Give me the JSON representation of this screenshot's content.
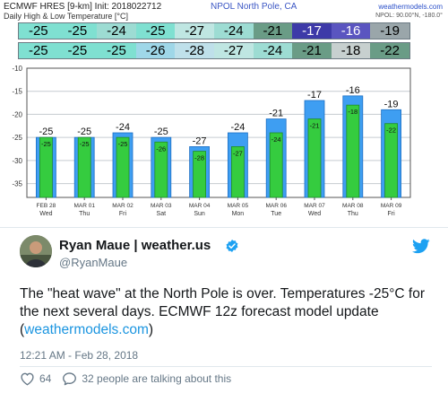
{
  "header": {
    "model_line": "ECMWF HRES [9-km] Init: 2018022712",
    "subtitle": "Daily High & Low Temperature [°C]",
    "location": "NPOL North Pole,   CA",
    "brand": "weathermodels.com",
    "coords": "NPOL: 90.00°N, -180.0°"
  },
  "strips": {
    "high": {
      "values": [
        "-25",
        "-25",
        "-24",
        "-25",
        "-27",
        "-24",
        "-21",
        "-17",
        "-16",
        "-19"
      ],
      "colors": [
        "#7fe0d1",
        "#7fe0d1",
        "#9ddcd3",
        "#7fe0d1",
        "#bfe6e2",
        "#9ddcd3",
        "#6a9c86",
        "#3d3aa8",
        "#5a55c0",
        "#9aa6aa"
      ]
    },
    "low": {
      "values": [
        "-25",
        "-25",
        "-25",
        "-26",
        "-28",
        "-27",
        "-24",
        "-21",
        "-18",
        "-22"
      ],
      "colors": [
        "#7fe0d1",
        "#7fe0d1",
        "#7fe0d1",
        "#9fd7e8",
        "#bfe0ea",
        "#bfe6e2",
        "#9ddcd3",
        "#6a9c86",
        "#c7d0cf",
        "#6a9c86"
      ]
    }
  },
  "chart_data": {
    "type": "bar",
    "categories": [
      "FEB 28",
      "MAR 01",
      "MAR 02",
      "MAR 03",
      "MAR 04",
      "MAR 05",
      "MAR 06",
      "MAR 07",
      "MAR 08",
      "MAR 09"
    ],
    "days": [
      "Wed",
      "Thu",
      "Fri",
      "Sat",
      "Sun",
      "Mon",
      "Tue",
      "Wed",
      "Thu",
      "Fri"
    ],
    "series": [
      {
        "values": [
          -25,
          -25,
          -24,
          -25,
          -27,
          -24,
          -21,
          -17,
          -16,
          -19
        ],
        "color": "#3e9ef2",
        "labels": [
          "-25",
          "-25",
          "-24",
          "-25",
          "-27",
          "-24",
          "-21",
          "-17",
          "-16",
          "-19"
        ]
      },
      {
        "values": [
          -25,
          -25,
          -25,
          -26,
          -28,
          -27,
          -24,
          -21,
          -18,
          -22
        ],
        "color": "#35cc3f",
        "labels": [
          "-25",
          "-25",
          "-25",
          "-26",
          "-28",
          "-27",
          "-24",
          "-21",
          "-18",
          "-22"
        ]
      }
    ],
    "yticks": [
      -10,
      -15,
      -20,
      -25,
      -30,
      -35
    ],
    "ytick_labels": [
      "-10",
      "-15",
      "-20",
      "-25",
      "-30",
      "-35"
    ],
    "ylim": [
      -38,
      -10
    ],
    "grid": true,
    "legend": "none"
  },
  "tweet": {
    "name": "Ryan Maue | weather.us",
    "handle": "@RyanMaue",
    "text_before": "The \"heat wave\" at the North Pole is over.  Temperatures -25°C for the next several days.  ECMWF 12z forecast model update (",
    "link": "weathermodels.com",
    "text_after": ")",
    "timestamp": "12:21 AM - Feb 28, 2018",
    "likes": "64",
    "talking": "32 people are talking about this"
  },
  "icons": {
    "verified": "verified-badge-icon",
    "bird": "twitter-bird-icon",
    "like": "heart-icon",
    "reply": "speech-bubble-icon"
  }
}
